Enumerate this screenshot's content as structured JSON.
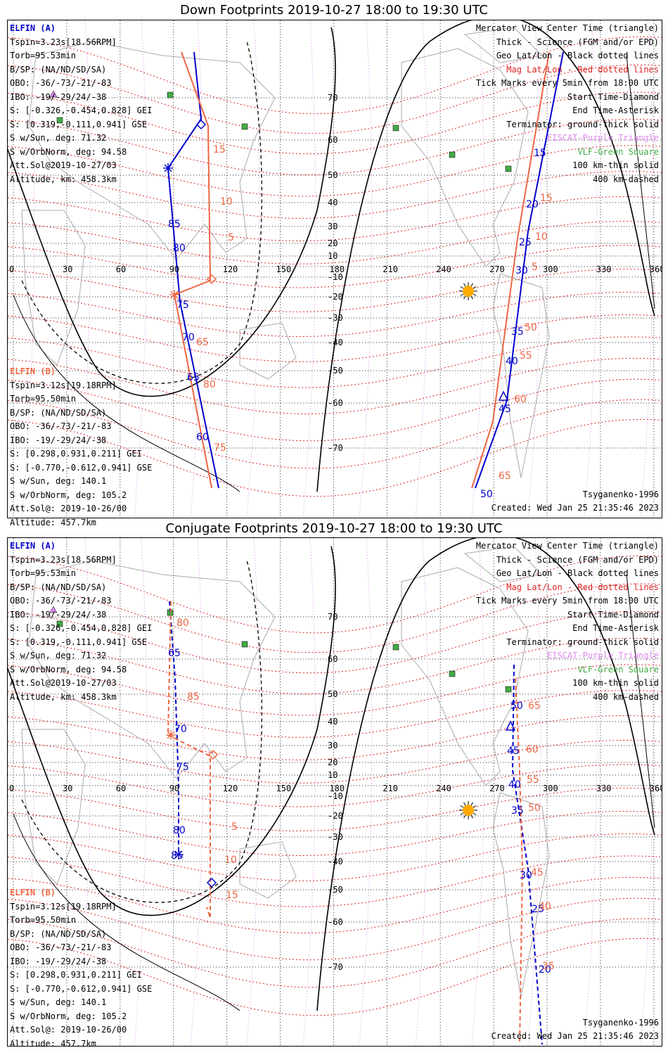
{
  "panels": [
    {
      "title": "Down Footprints 2019-10-27 18:00 to 19:30 UTC",
      "elfin_a": [
        "ELFIN (A)",
        "Tspin=3.23s[18.56RPM]",
        "Torb=95.53min",
        "B/SP: (NA/ND/SD/SA)",
        "OBO: -36/-73/-21/-83",
        "IBO: -19/-29/24/-38",
        "S: [-0.326,-0.454,0.828] GEI",
        "S: [0.319,-0.111,0.941] GSE",
        "S w/Sun, deg: 71.32",
        "S w/OrbNorm, deg: 94.58",
        "Att.Sol@2019-10-27/03",
        "Altitude, km: 458.3km"
      ],
      "elfin_b": [
        "ELFIN (B)",
        "Tspin=3.12s[19.18RPM]",
        "Torb=95.50min",
        "B/SP: (NA/ND/SD/SA)",
        "OBO: -36/-73/-21/-83",
        "IBO: -19/-29/24/-38",
        "S: [0.298,0.931,0.211] GEI",
        "S: [-0.770,-0.612,0.941] GSE",
        "S w/Sun, deg: 140.1",
        "S w/OrbNorm, deg: 105.2",
        "Att.Sol@: 2019-10-26/00",
        "Altitude: 457.7km"
      ],
      "footer_right": [
        "Tsyganenko-1996",
        "Created: Wed Jan 25 21:35:46 2023"
      ],
      "a_labels": [
        [
          "15",
          748,
          193
        ],
        [
          "20",
          737,
          266
        ],
        [
          "25",
          727,
          320
        ],
        [
          "30",
          722,
          360
        ],
        [
          "35",
          716,
          447
        ],
        [
          "40",
          708,
          489
        ],
        [
          "45",
          698,
          557
        ],
        [
          "50",
          672,
          678
        ],
        [
          "85",
          228,
          294
        ],
        [
          "80",
          235,
          328
        ],
        [
          "75",
          240,
          409
        ],
        [
          "70",
          248,
          455
        ],
        [
          "65",
          255,
          512
        ],
        [
          "60",
          268,
          597
        ]
      ],
      "b_labels": [
        [
          "15",
          292,
          188
        ],
        [
          "10",
          302,
          262
        ],
        [
          "5",
          313,
          313
        ],
        [
          "15",
          757,
          257
        ],
        [
          "10",
          750,
          312
        ],
        [
          "5",
          745,
          355
        ],
        [
          "50",
          735,
          441
        ],
        [
          "55",
          728,
          481
        ],
        [
          "60",
          720,
          543
        ],
        [
          "65",
          698,
          652
        ],
        [
          "65",
          268,
          462
        ],
        [
          "80",
          278,
          522
        ],
        [
          "75",
          293,
          612
        ]
      ]
    },
    {
      "title": "Conjugate Footprints 2019-10-27 18:00 to 19:30 UTC",
      "elfin_a": [
        "ELFIN (A)",
        "Tspin=3.23s[18.56RPM]",
        "Torb=95.53min",
        "B/SP: (NA/ND/SD/SA)",
        "OBO: -36/-73/-21/-83",
        "IBO: -19/-29/24/-38",
        "S: [-0.326,-0.454,0.828] GEI",
        "S: [0.319,-0.111,0.941] GSE",
        "S w/Sun, deg: 71.32",
        "S w/OrbNorm, deg: 94.58",
        "Att.Sol@2019-10-27/03",
        "Altitude, km: 458.3km"
      ],
      "elfin_b": [
        "ELFIN (B)",
        "Tspin=3.12s[19.18RPM]",
        "Torb=95.50min",
        "B/SP: (NA/ND/SD/SA)",
        "OBO: -36/-73/-21/-83",
        "IBO: -19/-29/24/-38",
        "S: [0.298,0.931,0.211] GEI",
        "S: [-0.770,-0.612,0.941] GSE",
        "S w/Sun, deg: 140.1",
        "S w/OrbNorm, deg: 105.2",
        "Att.Sol@: 2019-10-26/00",
        "Altitude: 457.7km"
      ],
      "footer_right": [
        "Tsyganenko-1996",
        "Created: Wed Jan 25 21:35:46 2023"
      ],
      "a_labels": [
        [
          "65",
          228,
          168
        ],
        [
          "70",
          237,
          276
        ],
        [
          "75",
          240,
          330
        ],
        [
          "80",
          235,
          420
        ],
        [
          "85",
          232,
          456
        ],
        [
          "50",
          715,
          243
        ],
        [
          "45",
          710,
          307
        ],
        [
          "40",
          712,
          355
        ],
        [
          "35",
          716,
          392
        ],
        [
          "30",
          728,
          484
        ],
        [
          "25",
          745,
          532
        ],
        [
          "20",
          755,
          618
        ]
      ],
      "b_labels": [
        [
          "80",
          240,
          125
        ],
        [
          "85",
          255,
          230
        ],
        [
          "5",
          318,
          415
        ],
        [
          "10",
          308,
          462
        ],
        [
          "15",
          310,
          512
        ],
        [
          "65",
          740,
          243
        ],
        [
          "60",
          737,
          305
        ],
        [
          "55",
          738,
          348
        ],
        [
          "50",
          740,
          388
        ],
        [
          "45",
          744,
          480
        ],
        [
          "40",
          755,
          528
        ],
        [
          "35",
          760,
          613
        ]
      ]
    }
  ],
  "right_legend": [
    "Mercator View Center Time (triangle)",
    "Thick - Science (FGM and/or EPD)",
    "Geo Lat/Lon - Black dotted lines",
    "Mag Lat/Lon - Red dotted lines",
    "Tick Marks every 5min from 18:00 UTC",
    "Start Time-Diamond",
    "End Time-Asterisk",
    "Terminator: ground-thick solid",
    "EISCAT-Purple Triangle",
    "VLF-Green Square",
    "100 km-thin solid",
    "400 km-dashed"
  ],
  "lon_labels": [
    "0",
    "30",
    "60",
    "90",
    "120",
    "150",
    "180",
    "210",
    "240",
    "270",
    "300",
    "330",
    "360"
  ],
  "lat_labels": [
    "70",
    "60",
    "50",
    "40",
    "30",
    "20",
    "10",
    "-10",
    "-20",
    "-30",
    "-40",
    "-50",
    "-60",
    "-70"
  ],
  "colors": {
    "elfin_a": "#0000cc",
    "elfin_b": "#ee6644",
    "mag_grid": "#dd2222",
    "geo_grid": "#000000",
    "eiscat": "#dd88ee",
    "vlf": "#44aa44",
    "sun": "#ffaa00"
  }
}
